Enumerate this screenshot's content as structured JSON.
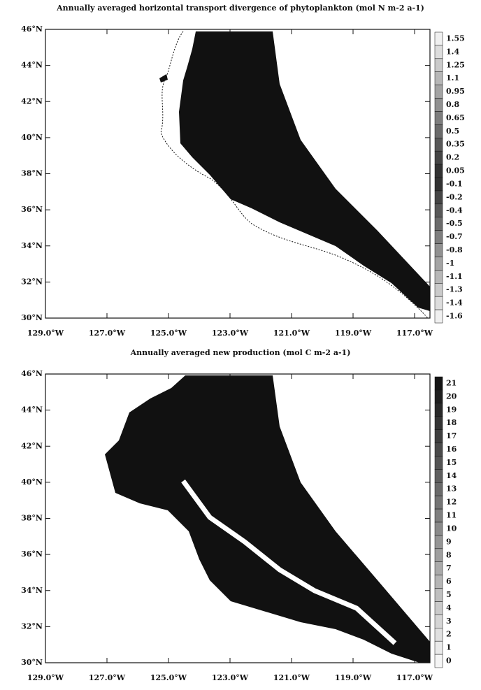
{
  "panels": [
    {
      "title": "Annually averaged horizontal transport divergence of phytoplankton (mol N m-2 a-1)",
      "lat_labels": [
        "46°N",
        "44°N",
        "42°N",
        "40°N",
        "38°N",
        "36°N",
        "34°N",
        "32°N",
        "30°N"
      ],
      "lon_labels": [
        "129.0°W",
        "127.0°W",
        "125.0°W",
        "123.0°W",
        "121.0°W",
        "119.0°W",
        "117.0°W"
      ],
      "colorbar_labels": [
        "1.55",
        "1.4",
        "1.25",
        "1.1",
        "0.95",
        "0.8",
        "0.65",
        "0.5",
        "0.35",
        "0.2",
        "0.05",
        "-0.1",
        "-0.2",
        "-0.4",
        "-0.5",
        "-0.7",
        "-0.8",
        "-1",
        "-1.1",
        "-1.3",
        "-1.4",
        "-1.6"
      ]
    },
    {
      "title": "Annually averaged new production (mol C m-2 a-1)",
      "lat_labels": [
        "46°N",
        "44°N",
        "42°N",
        "40°N",
        "38°N",
        "36°N",
        "34°N",
        "32°N",
        "30°N"
      ],
      "lon_labels": [
        "129.0°W",
        "127.0°W",
        "125.0°W",
        "123.0°W",
        "121.0°W",
        "119.0°W",
        "117.0°W"
      ],
      "colorbar_labels": [
        "21",
        "20",
        "19",
        "18",
        "17",
        "16",
        "15",
        "14",
        "13",
        "12",
        "11",
        "10",
        "9",
        "8",
        "7",
        "6",
        "5",
        "4",
        "3",
        "2",
        "1",
        "0"
      ]
    }
  ]
}
